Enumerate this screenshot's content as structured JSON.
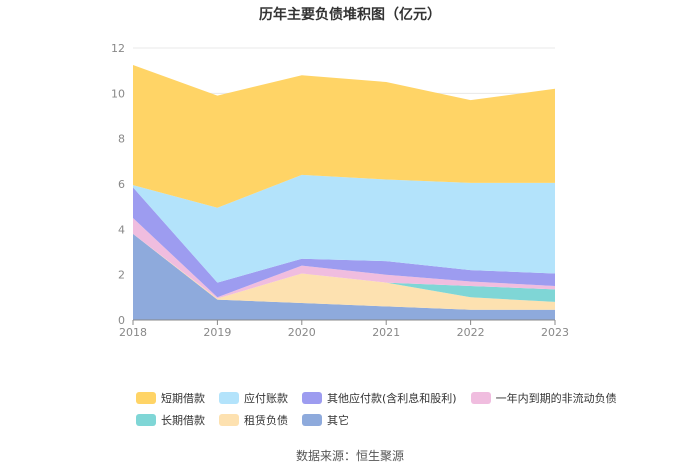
{
  "title": "历年主要负债堆积图（亿元）",
  "source": "数据来源：恒生聚源",
  "chart_data": {
    "type": "area",
    "stacked": true,
    "title": "历年主要负债堆积图（亿元）",
    "x": [
      "2018",
      "2019",
      "2020",
      "2021",
      "2022",
      "2023"
    ],
    "ylim": [
      0,
      12
    ],
    "yticks": [
      "0",
      "2",
      "4",
      "6",
      "8",
      "10",
      "12"
    ],
    "grid": true,
    "legend_position": "bottom",
    "series": [
      {
        "name": "其它",
        "color": "#8eaadc",
        "values": [
          3.8,
          0.9,
          0.75,
          0.6,
          0.45,
          0.45
        ]
      },
      {
        "name": "租赁负债",
        "color": "#fde1b0",
        "values": [
          0.0,
          0.05,
          1.3,
          1.05,
          0.55,
          0.35
        ]
      },
      {
        "name": "长期借款",
        "color": "#7fd6d6",
        "values": [
          0.0,
          0.0,
          0.0,
          0.0,
          0.5,
          0.55
        ]
      },
      {
        "name": "一年内到期的非流动负债",
        "color": "#f0bddf",
        "values": [
          0.7,
          0.05,
          0.35,
          0.35,
          0.2,
          0.15
        ]
      },
      {
        "name": "其他应付款(含利息和股利)",
        "color": "#9d9cf0",
        "values": [
          1.35,
          0.65,
          0.3,
          0.6,
          0.5,
          0.55
        ]
      },
      {
        "name": "应付账款",
        "color": "#b3e3fb",
        "values": [
          0.1,
          3.3,
          3.7,
          3.6,
          3.85,
          4.0
        ]
      },
      {
        "name": "短期借款",
        "color": "#ffd466",
        "values": [
          5.3,
          4.95,
          4.4,
          4.3,
          3.65,
          4.15
        ]
      }
    ],
    "legend_order": [
      "短期借款",
      "应付账款",
      "其他应付款(含利息和股利)",
      "一年内到期的非流动负债",
      "长期借款",
      "租赁负债",
      "其它"
    ]
  }
}
